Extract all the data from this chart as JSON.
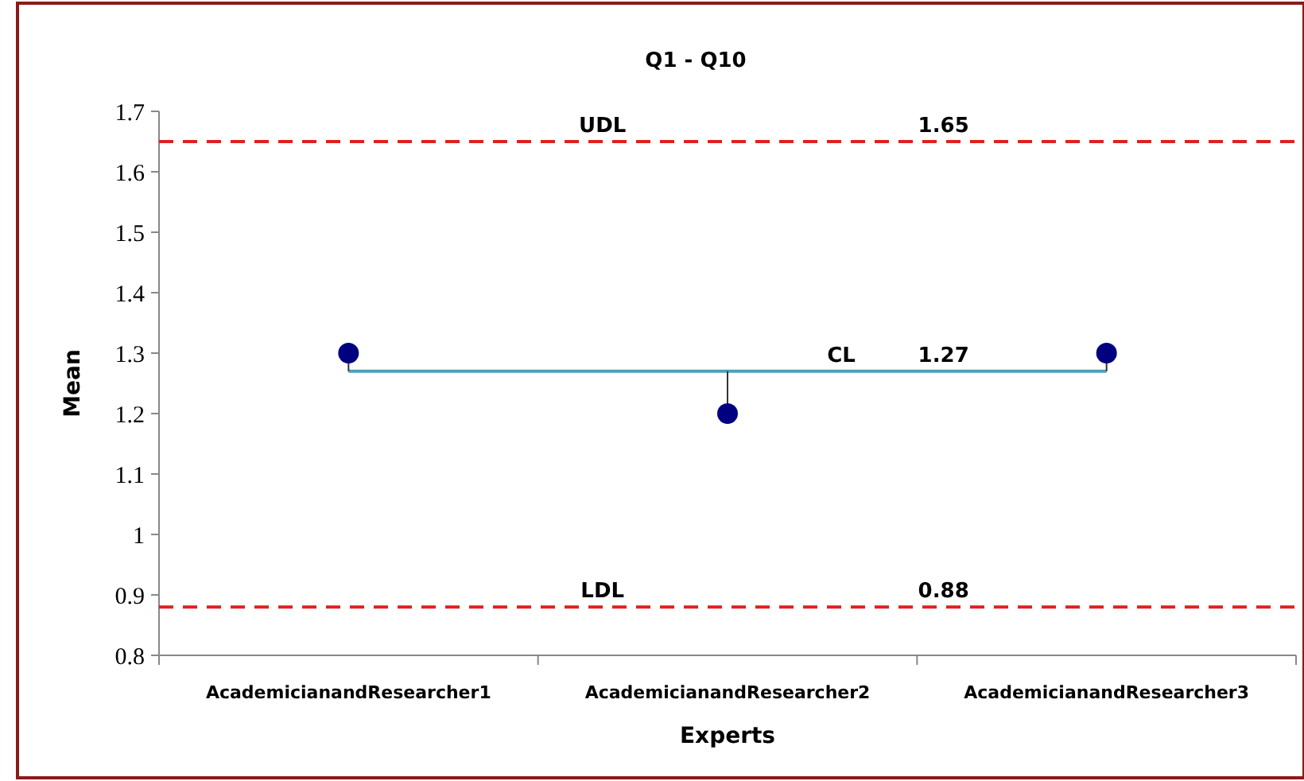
{
  "chart_data": {
    "type": "scatter",
    "title": "Q1 - Q10",
    "xlabel": "Experts",
    "ylabel": "Mean",
    "categories": [
      "AcademicianandResearcher1",
      "AcademicianandResearcher2",
      "AcademicianandResearcher3"
    ],
    "series": [
      {
        "color": "#000080",
        "values": [
          1.3,
          1.2,
          1.3
        ],
        "errors": [
          [
            1.27,
            1.3
          ],
          [
            1.2,
            1.27
          ],
          [
            1.27,
            1.3
          ]
        ]
      }
    ],
    "ylim": [
      0.8,
      1.7
    ],
    "yticks": [
      0.8,
      0.9,
      1,
      1.1,
      1.2,
      1.3,
      1.4,
      1.5,
      1.6,
      1.7
    ],
    "marker": "circle",
    "grid": false,
    "annotations": [
      {
        "text": "1.65",
        "y": 1.65
      },
      {
        "text": "1.27",
        "y": 1.27
      },
      {
        "text": "0.88",
        "y": 0.88
      }
    ],
    "ref_lines": [
      {
        "axis": "y",
        "value": 1.65,
        "label": "UDL",
        "color": "#e02020",
        "line_style": "dashed"
      },
      {
        "axis": "y",
        "value": 1.27,
        "label": "CL",
        "color": "#4aa3b8",
        "line_style": "solid"
      },
      {
        "axis": "y",
        "value": 0.88,
        "label": "LDL",
        "color": "#e02020",
        "line_style": "dashed"
      }
    ]
  }
}
